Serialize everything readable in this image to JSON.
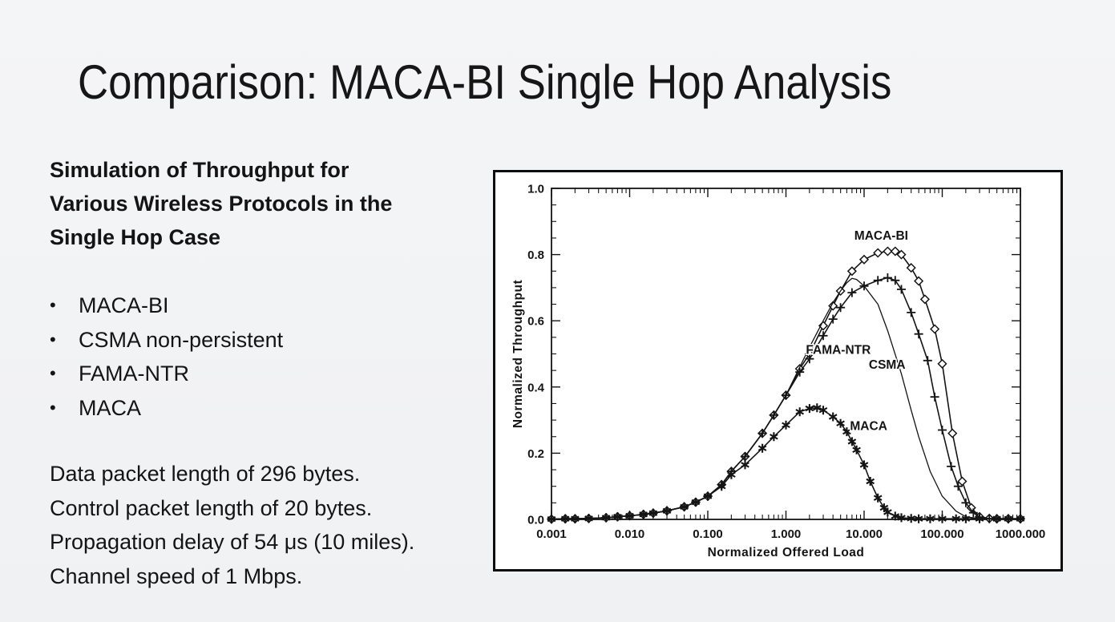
{
  "colors": {
    "background": "#f1f2f4",
    "text": "#141414",
    "chart_ink": "#141414",
    "chart_background": "#ffffff"
  },
  "slide": {
    "title": "Comparison: MACA-BI Single Hop Analysis",
    "lead_lines": [
      "Simulation of Throughput for",
      "Various Wireless Protocols in the",
      "Single Hop Case"
    ],
    "bullet_char": "•",
    "bullets": [
      "MACA-BI",
      "CSMA non-persistent",
      "FAMA-NTR",
      "MACA"
    ],
    "details": [
      "Data packet length of 296 bytes.",
      "Control packet length of 20 bytes.",
      "Propagation delay of 54 μs (10 miles).",
      "Channel speed of 1 Mbps."
    ]
  },
  "chart_data": {
    "type": "line",
    "title": "",
    "xlabel": "Normalized Offered Load",
    "ylabel": "Normalized Throughput",
    "x_scale": "log",
    "xlim": [
      0.001,
      1000
    ],
    "ylim": [
      0,
      1
    ],
    "x_ticks": [
      0.001,
      0.01,
      0.1,
      1,
      10,
      100,
      1000
    ],
    "x_tick_labels": [
      "0.001",
      "0.010",
      "0.100",
      "1.000",
      "10.000",
      "100.000",
      "1000.000"
    ],
    "y_ticks": [
      0,
      0.2,
      0.4,
      0.6,
      0.8,
      1.0
    ],
    "y_tick_labels": [
      "0.0",
      "0.2",
      "0.4",
      "0.6",
      "0.8",
      "1.0"
    ],
    "y_minor_step": 0.05,
    "grid": false,
    "legend": "inline-labels",
    "series": [
      {
        "name": "MACA-BI",
        "marker": "diamond",
        "label_at": [
          7.5,
          0.855
        ],
        "x": [
          0.001,
          0.0015,
          0.002,
          0.003,
          0.005,
          0.007,
          0.01,
          0.015,
          0.02,
          0.03,
          0.05,
          0.07,
          0.1,
          0.15,
          0.2,
          0.3,
          0.5,
          0.7,
          1,
          1.5,
          2,
          3,
          4,
          5,
          7,
          10,
          15,
          20,
          25,
          30,
          40,
          50,
          60,
          80,
          100,
          135,
          180,
          235,
          300,
          400,
          500,
          700,
          1000
        ],
        "y": [
          0.001,
          0.002,
          0.002,
          0.003,
          0.005,
          0.008,
          0.011,
          0.015,
          0.019,
          0.026,
          0.038,
          0.052,
          0.07,
          0.105,
          0.145,
          0.19,
          0.26,
          0.315,
          0.375,
          0.455,
          0.5,
          0.585,
          0.645,
          0.69,
          0.75,
          0.785,
          0.805,
          0.81,
          0.81,
          0.8,
          0.76,
          0.72,
          0.665,
          0.575,
          0.47,
          0.26,
          0.115,
          0.035,
          0.008,
          0.003,
          0.002,
          0.002,
          0.002
        ]
      },
      {
        "name": "FAMA-NTR",
        "marker": "plus",
        "label_at": [
          1.8,
          0.51
        ],
        "x": [
          0.001,
          0.0015,
          0.002,
          0.003,
          0.005,
          0.007,
          0.01,
          0.015,
          0.02,
          0.03,
          0.05,
          0.07,
          0.1,
          0.15,
          0.2,
          0.3,
          0.5,
          0.7,
          1,
          1.5,
          2,
          3,
          4,
          5,
          7,
          10,
          15,
          20,
          25,
          30,
          40,
          50,
          65,
          80,
          100,
          130,
          160,
          200,
          250,
          300,
          400,
          500,
          700,
          1000
        ],
        "y": [
          0.001,
          0.002,
          0.002,
          0.003,
          0.005,
          0.008,
          0.011,
          0.015,
          0.019,
          0.026,
          0.038,
          0.052,
          0.07,
          0.105,
          0.145,
          0.19,
          0.26,
          0.315,
          0.375,
          0.445,
          0.485,
          0.555,
          0.605,
          0.64,
          0.685,
          0.705,
          0.722,
          0.73,
          0.722,
          0.695,
          0.625,
          0.56,
          0.48,
          0.37,
          0.27,
          0.16,
          0.1,
          0.05,
          0.02,
          0.007,
          0.002,
          0.002,
          0.002,
          0.002
        ]
      },
      {
        "name": "CSMA",
        "marker": "none",
        "label_at": [
          11.5,
          0.465
        ],
        "x": [
          0.001,
          0.0015,
          0.002,
          0.003,
          0.005,
          0.007,
          0.01,
          0.015,
          0.02,
          0.03,
          0.05,
          0.07,
          0.1,
          0.15,
          0.2,
          0.3,
          0.5,
          0.7,
          1,
          1.5,
          2,
          3,
          4,
          5,
          6,
          7,
          8,
          10,
          15,
          20,
          30,
          40,
          50,
          70,
          100,
          150,
          200,
          300,
          500,
          1000
        ],
        "y": [
          0.001,
          0.002,
          0.002,
          0.003,
          0.005,
          0.008,
          0.011,
          0.015,
          0.019,
          0.026,
          0.038,
          0.052,
          0.07,
          0.105,
          0.145,
          0.19,
          0.26,
          0.315,
          0.375,
          0.46,
          0.52,
          0.6,
          0.655,
          0.69,
          0.715,
          0.728,
          0.725,
          0.705,
          0.65,
          0.57,
          0.44,
          0.33,
          0.25,
          0.145,
          0.07,
          0.025,
          0.008,
          0.002,
          0.001,
          0.001
        ]
      },
      {
        "name": "MACA",
        "marker": "asterisk",
        "label_at": [
          6.6,
          0.28
        ],
        "x": [
          0.001,
          0.0015,
          0.002,
          0.003,
          0.005,
          0.007,
          0.01,
          0.015,
          0.02,
          0.03,
          0.05,
          0.07,
          0.1,
          0.15,
          0.2,
          0.3,
          0.5,
          0.7,
          1,
          1.5,
          2,
          2.5,
          3,
          4,
          5,
          6,
          7,
          8,
          10,
          12,
          15,
          18,
          20,
          25,
          30,
          40,
          50,
          70,
          100,
          150,
          200,
          300,
          500,
          700,
          1000
        ],
        "y": [
          0.001,
          0.002,
          0.002,
          0.003,
          0.005,
          0.008,
          0.011,
          0.015,
          0.019,
          0.026,
          0.038,
          0.052,
          0.07,
          0.1,
          0.135,
          0.165,
          0.215,
          0.25,
          0.285,
          0.325,
          0.335,
          0.337,
          0.33,
          0.31,
          0.29,
          0.265,
          0.235,
          0.21,
          0.165,
          0.115,
          0.065,
          0.035,
          0.022,
          0.01,
          0.005,
          0.003,
          0.002,
          0.002,
          0.002,
          0.002,
          0.002,
          0.002,
          0.002,
          0.002,
          0.002
        ]
      }
    ]
  }
}
